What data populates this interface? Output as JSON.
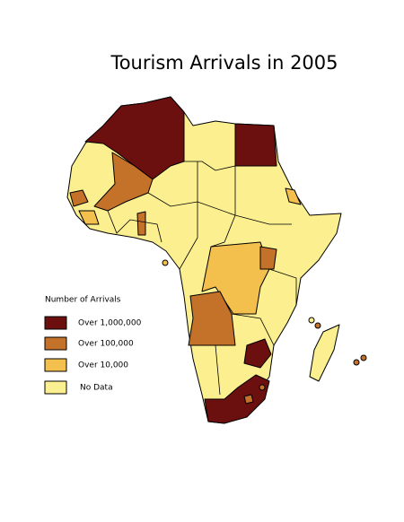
{
  "title": "Tourism Arrivals in 2005",
  "legend": {
    "title": "Number of Arrivals",
    "items": [
      {
        "label": "Over 1,000,000",
        "color": "#6b0f0f"
      },
      {
        "label": "Over 100,000",
        "color": "#c4722a"
      },
      {
        "label": "Over 10,000",
        "color": "#f3c04e"
      },
      {
        "label": "No Data",
        "color": "#fbef90"
      }
    ]
  }
}
